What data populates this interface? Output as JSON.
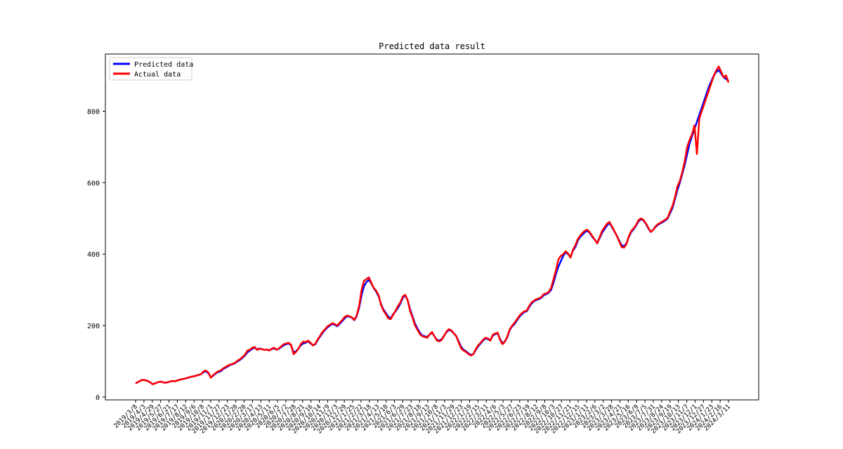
{
  "chart_data": {
    "type": "line",
    "title": "Predicted data result",
    "xlabel": "",
    "ylabel": "",
    "ylim": [
      -8,
      960
    ],
    "yticks": [
      0,
      200,
      400,
      600,
      800
    ],
    "grid": false,
    "legend_position": "top-left",
    "x_tick_labels": [
      "2019/3/8",
      "2019/4/3",
      "2019/4/29",
      "2019/5/27",
      "2019/6/21",
      "2019/7/17",
      "2019/8/12",
      "2019/9/6",
      "2019/10/8",
      "2019/11/1",
      "2019/11/27",
      "2019/12/23",
      "2020/1/20",
      "2020/2/20",
      "2020/3/17",
      "2020/4/13",
      "2020/5/11",
      "2020/6/5",
      "2020/7/2",
      "2020/7/28",
      "2020/8/21",
      "2020/9/16",
      "2020/10/14",
      "2020/11/9",
      "2020/12/3",
      "2020/12/29",
      "2021/1/25",
      "2021/2/22",
      "2021/3/18",
      "2021/4/13",
      "2021/5/10",
      "2021/6/3",
      "2021/6/29",
      "2021/7/23",
      "2021/8/18",
      "2021/9/13",
      "2021/10/8",
      "2021/11/3",
      "2021/11/29",
      "2021/12/23",
      "2022/1/19",
      "2022/2/15",
      "2022/3/11",
      "2022/4/6",
      "2022/5/3",
      "2022/5/27",
      "2022/6/23",
      "2022/7/19",
      "2022/8/12",
      "2022/9/8",
      "2022/10/3",
      "2022/10/27",
      "2022/11/21",
      "2022/12/15",
      "2023/1/11",
      "2023/2/6",
      "2023/3/2",
      "2023/3/28",
      "2023/4/21",
      "2023/5/16",
      "2023/6/9",
      "2023/7/5",
      "2023/7/31",
      "2023/8/24",
      "2023/9/19",
      "2023/10/13",
      "2023/11/7",
      "2023/12/1",
      "2023/12/27",
      "2024/1/23",
      "2024/2/16",
      "2024/3/11"
    ],
    "series": [
      {
        "name": "Predicted data",
        "color": "#0000ff",
        "values": [
          38,
          42,
          46,
          48,
          47,
          45,
          41,
          36,
          38,
          41,
          43,
          42,
          40,
          41,
          43,
          45,
          44,
          46,
          48,
          50,
          51,
          53,
          55,
          57,
          58,
          60,
          62,
          64,
          70,
          72,
          66,
          55,
          60,
          66,
          70,
          72,
          78,
          82,
          86,
          90,
          92,
          95,
          100,
          104,
          110,
          116,
          125,
          130,
          135,
          138,
          133,
          136,
          134,
          132,
          133,
          131,
          134,
          136,
          133,
          135,
          140,
          145,
          148,
          150,
          145,
          125,
          128,
          135,
          145,
          150,
          152,
          156,
          150,
          145,
          148,
          160,
          170,
          180,
          188,
          195,
          200,
          205,
          202,
          198,
          205,
          212,
          220,
          226,
          225,
          222,
          215,
          226,
          250,
          285,
          310,
          322,
          328,
          318,
          305,
          295,
          282,
          260,
          245,
          235,
          225,
          220,
          232,
          240,
          250,
          262,
          278,
          285,
          270,
          245,
          225,
          205,
          192,
          180,
          172,
          170,
          168,
          175,
          180,
          170,
          160,
          158,
          162,
          172,
          182,
          188,
          185,
          178,
          170,
          155,
          140,
          132,
          128,
          122,
          118,
          120,
          132,
          142,
          150,
          158,
          164,
          162,
          158,
          172,
          176,
          178,
          162,
          150,
          156,
          168,
          188,
          198,
          205,
          215,
          225,
          232,
          238,
          240,
          252,
          262,
          268,
          272,
          274,
          278,
          285,
          288,
          292,
          300,
          320,
          345,
          365,
          380,
          395,
          405,
          400,
          392,
          410,
          420,
          438,
          448,
          455,
          462,
          465,
          458,
          448,
          440,
          432,
          445,
          460,
          470,
          480,
          488,
          476,
          464,
          452,
          438,
          425,
          422,
          430,
          448,
          462,
          470,
          480,
          492,
          498,
          494,
          485,
          472,
          462,
          468,
          476,
          482,
          486,
          490,
          494,
          500,
          515,
          530,
          555,
          580,
          600,
          625,
          650,
          680,
          710,
          730,
          750,
          770,
          790,
          810,
          830,
          850,
          870,
          885,
          900,
          910,
          915,
          905,
          895,
          890,
          885
        ]
      },
      {
        "name": "Actual data",
        "color": "#ff0000",
        "values": [
          38,
          42,
          46,
          48,
          47,
          45,
          41,
          36,
          38,
          41,
          43,
          42,
          40,
          41,
          43,
          45,
          44,
          46,
          48,
          50,
          51,
          53,
          55,
          57,
          58,
          60,
          62,
          64,
          72,
          74,
          68,
          54,
          62,
          67,
          72,
          74,
          80,
          84,
          88,
          91,
          93,
          96,
          102,
          106,
          112,
          118,
          130,
          132,
          138,
          140,
          132,
          135,
          134,
          132,
          133,
          130,
          135,
          138,
          132,
          136,
          142,
          148,
          150,
          152,
          146,
          120,
          126,
          135,
          148,
          155,
          154,
          158,
          152,
          144,
          150,
          162,
          172,
          183,
          190,
          198,
          202,
          207,
          204,
          200,
          208,
          215,
          224,
          228,
          226,
          223,
          216,
          228,
          255,
          300,
          325,
          330,
          335,
          320,
          305,
          298,
          285,
          258,
          242,
          232,
          220,
          218,
          230,
          242,
          255,
          265,
          282,
          286,
          270,
          240,
          222,
          200,
          188,
          176,
          170,
          168,
          166,
          175,
          182,
          170,
          158,
          156,
          160,
          172,
          184,
          190,
          186,
          178,
          170,
          152,
          136,
          130,
          126,
          120,
          116,
          120,
          134,
          145,
          152,
          160,
          166,
          164,
          158,
          174,
          178,
          180,
          160,
          148,
          155,
          170,
          190,
          200,
          208,
          218,
          228,
          235,
          240,
          242,
          255,
          265,
          270,
          274,
          276,
          280,
          288,
          290,
          294,
          305,
          330,
          355,
          385,
          395,
          400,
          408,
          402,
          390,
          412,
          425,
          442,
          452,
          460,
          466,
          468,
          460,
          450,
          440,
          430,
          448,
          465,
          475,
          485,
          490,
          478,
          465,
          452,
          436,
          420,
          418,
          428,
          450,
          465,
          472,
          482,
          495,
          500,
          496,
          486,
          474,
          462,
          468,
          478,
          484,
          488,
          492,
          496,
          502,
          520,
          535,
          560,
          590,
          605,
          630,
          660,
          700,
          720,
          735,
          760,
          680,
          780,
          800,
          820,
          840,
          860,
          880,
          900,
          915,
          925,
          910,
          895,
          900,
          880
        ]
      }
    ]
  }
}
